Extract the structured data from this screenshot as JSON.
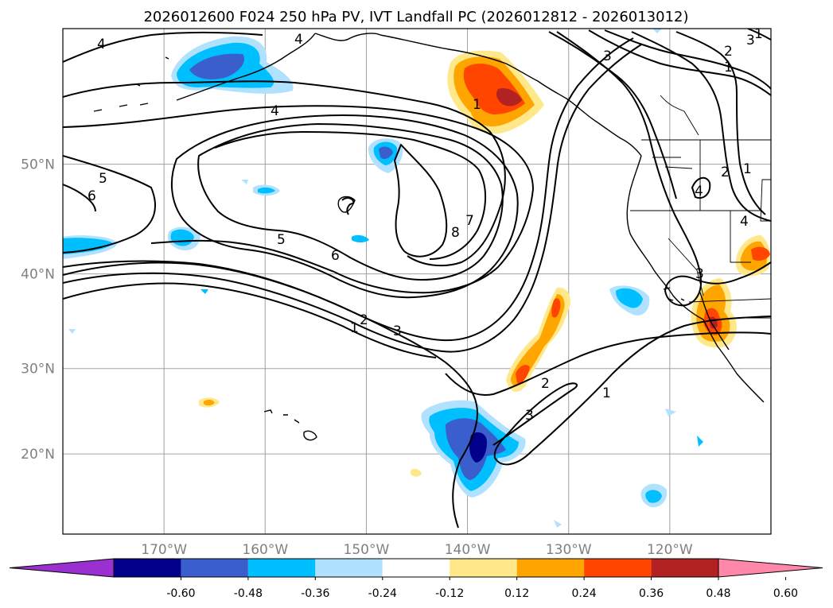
{
  "title": "2026012600 F024 250 hPa PV, IVT Landfall PC (2026012812 - 2026013012)",
  "map": {
    "lon_range": [
      -180,
      -110
    ],
    "lat_range": [
      10,
      60
    ],
    "lon_ticks": [
      {
        "lon": -170,
        "label": "170°W"
      },
      {
        "lon": -160,
        "label": "160°W"
      },
      {
        "lon": -150,
        "label": "150°W"
      },
      {
        "lon": -140,
        "label": "140°W"
      },
      {
        "lon": -130,
        "label": "130°W"
      },
      {
        "lon": -120,
        "label": "120°W"
      }
    ],
    "lat_ticks": [
      {
        "lat": 50,
        "label": "50°N"
      },
      {
        "lat": 40,
        "label": "40°N"
      },
      {
        "lat": 30,
        "label": "30°N"
      },
      {
        "lat": 20,
        "label": "20°N"
      }
    ],
    "grid_color": "#a0a0a0"
  },
  "colorbar": {
    "colors": [
      "#9b30d0",
      "#00008b",
      "#3a5fcd",
      "#00bfff",
      "#b0e2ff",
      "#ffffff",
      "#ffe88a",
      "#ffa500",
      "#ff4500",
      "#b22222",
      "#ff88aa"
    ],
    "labels": [
      "-0.60",
      "-0.48",
      "-0.36",
      "-0.24",
      "-0.12",
      "0.12",
      "0.24",
      "0.36",
      "0.48",
      "0.60"
    ]
  },
  "contour_labels": [
    "4",
    "4",
    "4",
    "5",
    "6",
    "5",
    "6",
    "7",
    "8",
    "1",
    "2",
    "3",
    "1",
    "2",
    "3",
    "4",
    "3",
    "2",
    "1",
    "1",
    "3",
    "4",
    "1",
    "1",
    "2",
    "3"
  ]
}
